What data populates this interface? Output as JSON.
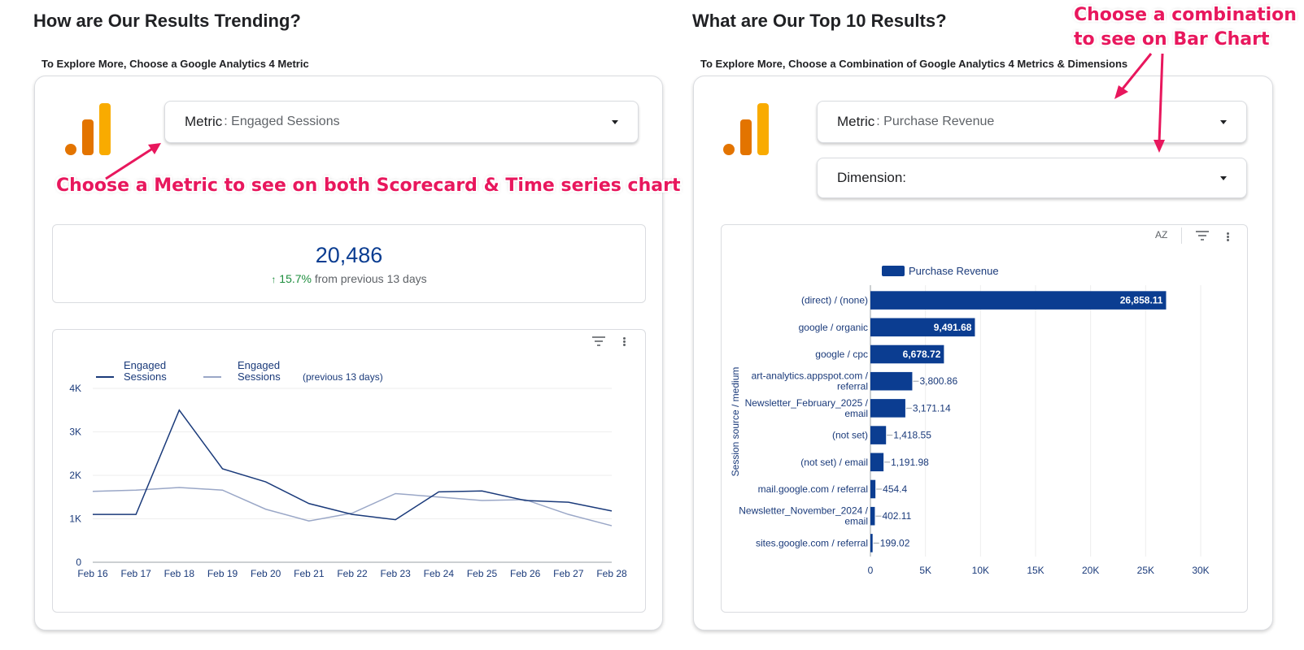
{
  "left": {
    "title": "How are Our Results Trending?",
    "subtitle": "To Explore More, Choose a Google Analytics 4 Metric",
    "metric_dropdown": {
      "label": "Metric",
      "value": ": Engaged Sessions"
    },
    "annotation": "Choose a Metric to see on both Scorecard & Time series chart",
    "scorecard": {
      "value": "20,486",
      "delta": "15.7%",
      "delta_text": "from previous 13 days",
      "delta_color": "#1e8e3e"
    },
    "legend": [
      {
        "line1": "Engaged",
        "line2": "Sessions",
        "color": "#1a3a7a"
      },
      {
        "line1": "Engaged",
        "line2": "Sessions",
        "suffix": "(previous 13 days)",
        "color": "#9aa7c7"
      }
    ]
  },
  "right": {
    "title": "What are Our Top 10 Results?",
    "subtitle": "To Explore More, Choose a Combination of Google Analytics 4 Metrics & Dimensions",
    "metric_dropdown": {
      "label": "Metric",
      "value": ": Purchase Revenue"
    },
    "dimension_dropdown": {
      "label": "Dimension:",
      "value": ""
    },
    "annotation_line1": "Choose a combination",
    "annotation_line2": "to see on Bar Chart",
    "legend_label": "Purchase Revenue",
    "sort_icon_text": "AZ"
  },
  "colors": {
    "accent": "#0b3d91",
    "annotation": "#e8175d",
    "logo_yellow": "#f9ab00",
    "logo_orange": "#e37400"
  },
  "chart_data": [
    {
      "type": "line",
      "x": [
        "Feb 16",
        "Feb 17",
        "Feb 18",
        "Feb 19",
        "Feb 20",
        "Feb 21",
        "Feb 22",
        "Feb 23",
        "Feb 24",
        "Feb 25",
        "Feb 26",
        "Feb 27",
        "Feb 28"
      ],
      "series": [
        {
          "name": "Engaged Sessions",
          "values": [
            1100,
            1100,
            3500,
            2150,
            1850,
            1350,
            1100,
            980,
            1620,
            1640,
            1420,
            1380,
            1180
          ],
          "color": "#1a3a7a"
        },
        {
          "name": "Engaged Sessions (previous 13 days)",
          "values": [
            1630,
            1660,
            1720,
            1660,
            1220,
            950,
            1130,
            1580,
            1500,
            1420,
            1440,
            1100,
            840
          ],
          "color": "#9aa7c7"
        }
      ],
      "ylim": [
        0,
        4000
      ],
      "yticks": [
        "0",
        "1K",
        "2K",
        "3K",
        "4K"
      ],
      "grid": true,
      "legend": "top-left"
    },
    {
      "type": "bar",
      "orientation": "horizontal",
      "ylabel": "Session source / medium",
      "categories": [
        [
          "(direct) / (none)"
        ],
        [
          "google / organic"
        ],
        [
          "google / cpc"
        ],
        [
          "art-analytics.appspot.com /",
          "referral"
        ],
        [
          "Newsletter_February_2025 /",
          "email"
        ],
        [
          "(not set)"
        ],
        [
          "(not set) / email"
        ],
        [
          "mail.google.com / referral"
        ],
        [
          "Newsletter_November_2024 /",
          "email"
        ],
        [
          "sites.google.com / referral"
        ]
      ],
      "values": [
        26858.11,
        9491.68,
        6678.72,
        3800.86,
        3171.14,
        1418.55,
        1191.98,
        454.4,
        402.11,
        199.02
      ],
      "labels": [
        "26,858.11",
        "9,491.68",
        "6,678.72",
        "3,800.86",
        "3,171.14",
        "1,418.55",
        "1,191.98",
        "454.4",
        "402.11",
        "199.02"
      ],
      "xlim": [
        0,
        30000
      ],
      "xticks": [
        "0",
        "5K",
        "10K",
        "15K",
        "20K",
        "25K",
        "30K"
      ],
      "series": [
        {
          "name": "Purchase Revenue",
          "color": "#0b3d91"
        }
      ],
      "grid": true,
      "legend": "top"
    }
  ]
}
